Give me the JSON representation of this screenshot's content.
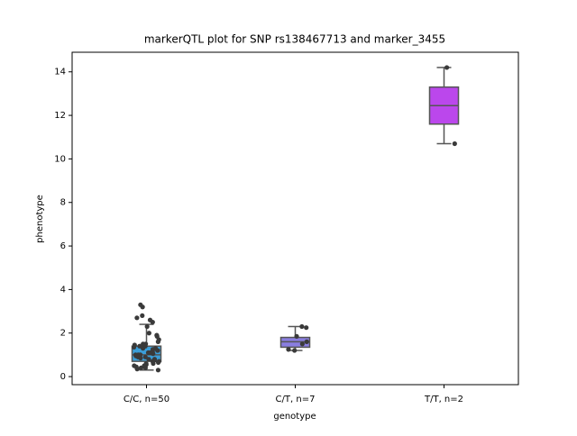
{
  "chart_data": {
    "type": "box",
    "title": "markerQTL plot for SNP rs138467713 and marker_3455",
    "xlabel": "genotype",
    "ylabel": "phenotype",
    "categories": [
      "C/C, n=50",
      "C/T, n=7",
      "T/T, n=2"
    ],
    "boxes": [
      {
        "min": 0.3,
        "q1": 0.7,
        "median": 1.0,
        "q3": 1.4,
        "max": 2.4,
        "color": "#3b9ed8"
      },
      {
        "min": 1.2,
        "q1": 1.35,
        "median": 1.6,
        "q3": 1.8,
        "max": 2.3,
        "color": "#8a7ee0"
      },
      {
        "min": 10.7,
        "q1": 11.6,
        "median": 12.45,
        "q3": 13.3,
        "max": 14.2,
        "color": "#bb47ec"
      }
    ],
    "points": [
      [
        0.3,
        0.35,
        0.4,
        0.4,
        0.45,
        0.5,
        0.5,
        0.55,
        0.6,
        0.6,
        0.65,
        0.7,
        0.7,
        0.75,
        0.8,
        0.8,
        0.85,
        0.9,
        0.9,
        0.95,
        1.0,
        1.0,
        1.0,
        1.05,
        1.1,
        1.1,
        1.15,
        1.2,
        1.2,
        1.25,
        1.3,
        1.3,
        1.35,
        1.4,
        1.4,
        1.45,
        1.5,
        1.5,
        1.6,
        1.7,
        1.85,
        1.9,
        2.0,
        2.3,
        2.5,
        2.6,
        2.7,
        2.8,
        3.2,
        3.3
      ],
      [
        1.2,
        1.25,
        1.5,
        1.6,
        1.85,
        2.25,
        2.3
      ],
      [
        10.7,
        14.2
      ]
    ],
    "point_color": "#3a3a3a",
    "ylim": [
      -0.37,
      14.9
    ],
    "yticks": [
      0,
      2,
      4,
      6,
      8,
      10,
      12,
      14
    ]
  }
}
